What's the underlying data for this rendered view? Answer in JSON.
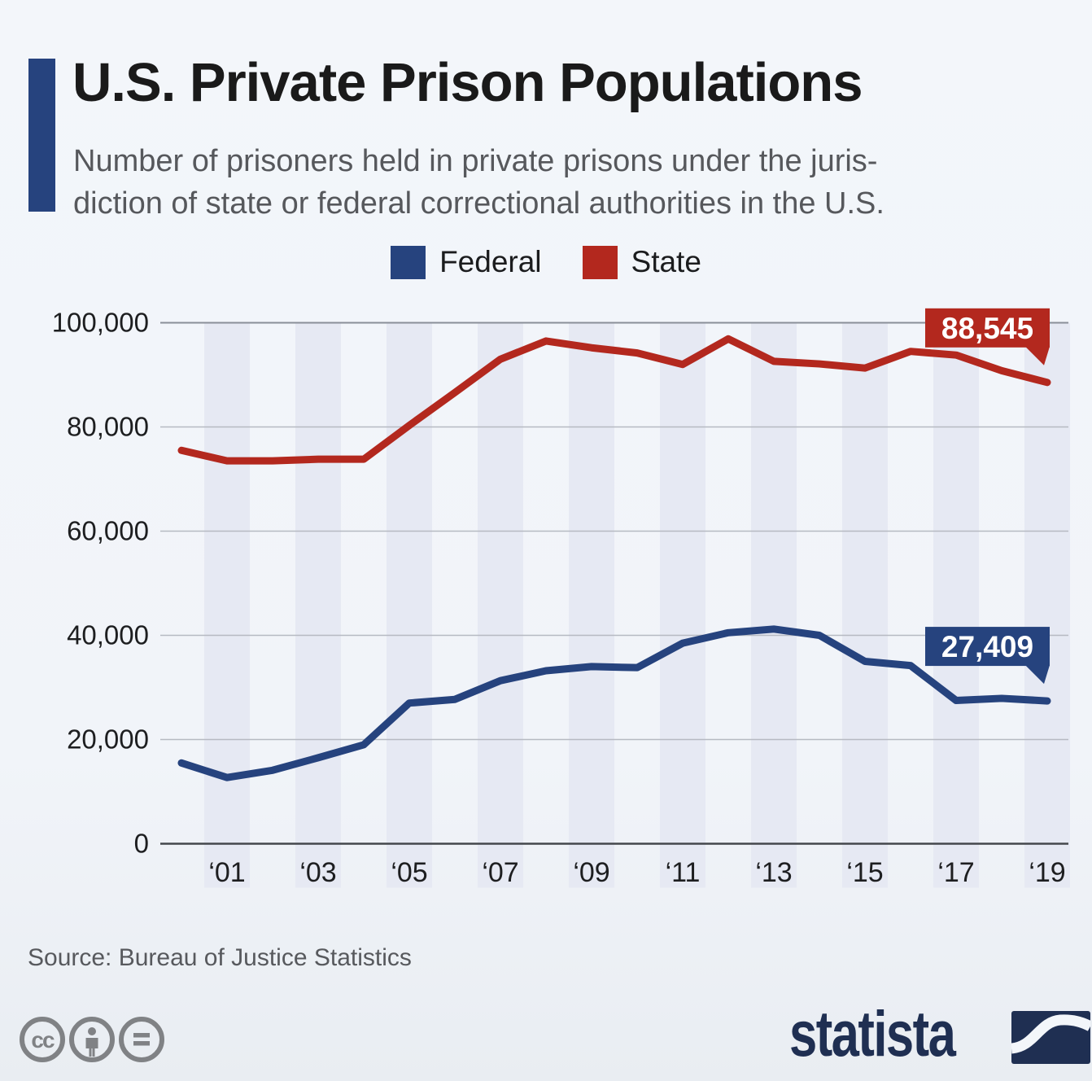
{
  "colors": {
    "accent_blue": "#26437e",
    "state_red": "#b3281e",
    "background": "#f2f5f9",
    "year_band": "#e6e9f3",
    "grid_light": "#b6bac2",
    "grid_top": "#8a8f98",
    "axis_dark": "#44474c",
    "tick_text": "#1d1e20",
    "brand_navy": "#1f2f52",
    "cc_gray": "#808285"
  },
  "header": {
    "title": "U.S. Private Prison Populations",
    "subtitle_lines": [
      "Number of prisoners held in private prisons under the juris-",
      "diction of state or federal correctional authorities in the U.S."
    ]
  },
  "legend": [
    {
      "label": "Federal",
      "color": "#26437e"
    },
    {
      "label": "State",
      "color": "#b3281e"
    }
  ],
  "chart_data": {
    "type": "line",
    "x": [
      2000,
      2001,
      2002,
      2003,
      2004,
      2005,
      2006,
      2007,
      2008,
      2009,
      2010,
      2011,
      2012,
      2013,
      2014,
      2015,
      2016,
      2017,
      2018,
      2019
    ],
    "series": [
      {
        "name": "Federal",
        "color": "#26437e",
        "values": [
          15500,
          12700,
          14100,
          16500,
          19000,
          27000,
          27700,
          31300,
          33200,
          34000,
          33800,
          38500,
          40500,
          41200,
          40000,
          35000,
          34200,
          27500,
          27900,
          27409
        ],
        "end_label": "27,409"
      },
      {
        "name": "State",
        "color": "#b3281e",
        "values": [
          75500,
          73500,
          73500,
          73800,
          73800,
          80300,
          86600,
          93000,
          96500,
          95200,
          94200,
          92000,
          96900,
          92600,
          92100,
          91300,
          94500,
          93800,
          90800,
          88545
        ],
        "end_label": "88,545"
      }
    ],
    "ylim": [
      0,
      100000
    ],
    "y_ticks": [
      0,
      20000,
      40000,
      60000,
      80000,
      100000
    ],
    "y_tick_labels": [
      "0",
      "20,000",
      "40,000",
      "60,000",
      "80,000",
      "100,000"
    ],
    "x_tick_years": [
      2001,
      2003,
      2005,
      2007,
      2009,
      2011,
      2013,
      2015,
      2017,
      2019
    ],
    "x_tick_labels": [
      "‘01",
      "‘03",
      "‘05",
      "‘07",
      "‘09",
      "‘11",
      "‘13",
      "‘15",
      "‘17",
      "‘19"
    ],
    "grid": "horizontal",
    "legend_position": "top",
    "band_years": [
      2001,
      2003,
      2005,
      2007,
      2009,
      2011,
      2013,
      2015,
      2017,
      2019
    ]
  },
  "footer": {
    "source": "Source: Bureau of Justice Statistics",
    "cc_text": "cc",
    "cc_icons": [
      "cc-icon",
      "cc-by-person-icon",
      "cc-nd-equals-icon"
    ],
    "brand": "statista"
  }
}
